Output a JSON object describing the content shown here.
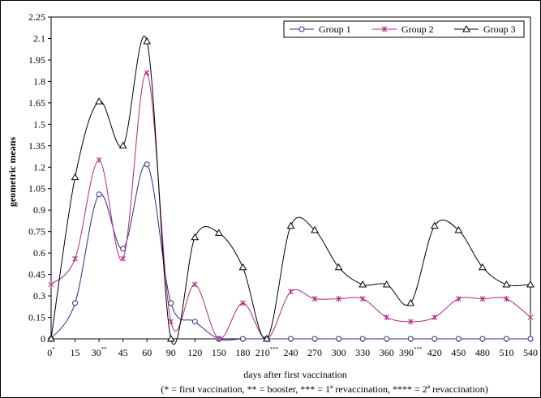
{
  "chart_data": {
    "type": "line",
    "smooth": true,
    "x": [
      0,
      15,
      30,
      45,
      60,
      90,
      120,
      150,
      180,
      210,
      240,
      270,
      300,
      330,
      360,
      390,
      420,
      450,
      480,
      510,
      540
    ],
    "x_tick_labels": [
      {
        "text": "0",
        "sup": "*"
      },
      {
        "text": "15",
        "sup": ""
      },
      {
        "text": "30",
        "sup": "**"
      },
      {
        "text": "45",
        "sup": ""
      },
      {
        "text": "60",
        "sup": ""
      },
      {
        "text": "90",
        "sup": ""
      },
      {
        "text": "120",
        "sup": ""
      },
      {
        "text": "150",
        "sup": ""
      },
      {
        "text": "180",
        "sup": ""
      },
      {
        "text": "210",
        "sup": "***"
      },
      {
        "text": "240",
        "sup": ""
      },
      {
        "text": "270",
        "sup": ""
      },
      {
        "text": "300",
        "sup": ""
      },
      {
        "text": "330",
        "sup": ""
      },
      {
        "text": "360",
        "sup": ""
      },
      {
        "text": "390",
        "sup": "***"
      },
      {
        "text": "420",
        "sup": ""
      },
      {
        "text": "450",
        "sup": ""
      },
      {
        "text": "480",
        "sup": ""
      },
      {
        "text": "510",
        "sup": ""
      },
      {
        "text": "540",
        "sup": ""
      }
    ],
    "y_ticks": [
      "0",
      "0.15",
      "0.3",
      "0.45",
      "0.6",
      "0.75",
      "0.9",
      "1.05",
      "1.2",
      "1.35",
      "1.5",
      "1.65",
      "1.8",
      "1.95",
      "2.1",
      "2.25"
    ],
    "ylim": [
      0,
      2.25
    ],
    "ylabel": "geometric means",
    "xlabel": "days after first vaccination",
    "note": "(* = first vaccination, ** = booster, *** = 1ª revaccination, **** = 2ª revaccination)",
    "legend_position": "top-right",
    "grid": false,
    "series": [
      {
        "name": "Group 1",
        "marker": "circle",
        "color": "#2b2b8c",
        "values": [
          0,
          0.25,
          1.01,
          0.63,
          1.22,
          0.25,
          0.12,
          0,
          0,
          0,
          0,
          0,
          0,
          0,
          0,
          0,
          0,
          0,
          0,
          0,
          0
        ]
      },
      {
        "name": "Group 2",
        "marker": "star",
        "color": "#b0287a",
        "values": [
          0.38,
          0.56,
          1.25,
          0.56,
          1.86,
          0.12,
          0.38,
          0,
          0.25,
          0,
          0.33,
          0.28,
          0.28,
          0.28,
          0.15,
          0.12,
          0.15,
          0.28,
          0.28,
          0.28,
          0.15
        ]
      },
      {
        "name": "Group 3",
        "marker": "triangle",
        "color": "#000000",
        "values": [
          0,
          1.13,
          1.66,
          1.35,
          2.08,
          0,
          0.71,
          0.74,
          0.5,
          0,
          0.79,
          0.76,
          0.5,
          0.38,
          0.38,
          0.25,
          0.79,
          0.76,
          0.5,
          0.38,
          0.38
        ]
      }
    ]
  }
}
